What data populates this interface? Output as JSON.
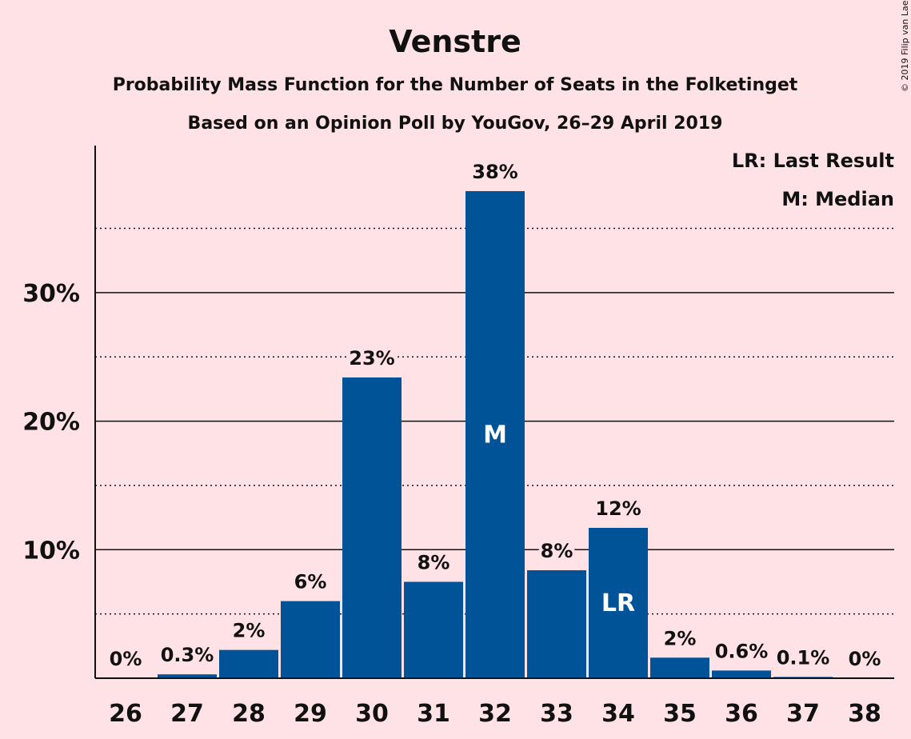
{
  "chart_data": {
    "type": "bar",
    "title": "Venstre",
    "subtitle_lines": [
      "Probability Mass Function for the Number of Seats in the Folketinget",
      "Based on an Opinion Poll by YouGov, 26–29 April 2019"
    ],
    "categories": [
      "26",
      "27",
      "28",
      "29",
      "30",
      "31",
      "32",
      "33",
      "34",
      "35",
      "36",
      "37",
      "38"
    ],
    "values": [
      0,
      0.3,
      2.2,
      6.0,
      23.4,
      7.5,
      37.9,
      8.4,
      11.7,
      1.6,
      0.6,
      0.1,
      0
    ],
    "value_labels": [
      "0%",
      "0.3%",
      "2%",
      "6%",
      "23%",
      "8%",
      "38%",
      "8%",
      "12%",
      "2%",
      "0.6%",
      "0.1%",
      "0%"
    ],
    "ylim": [
      0,
      41.5
    ],
    "yticks": [
      10,
      20,
      30
    ],
    "ytick_labels": [
      "10%",
      "20%",
      "30%"
    ],
    "minor_gridlines": [
      5,
      15,
      25,
      35
    ],
    "grid": true,
    "bar_color": "#005396",
    "background": "#ffe2e6",
    "markers": [
      {
        "category": "32",
        "label": "M"
      },
      {
        "category": "34",
        "label": "LR"
      }
    ],
    "legend": {
      "placement": "top-right",
      "items": [
        "LR: Last Result",
        "M: Median"
      ]
    },
    "copyright": "© 2019 Filip van Laenen"
  }
}
